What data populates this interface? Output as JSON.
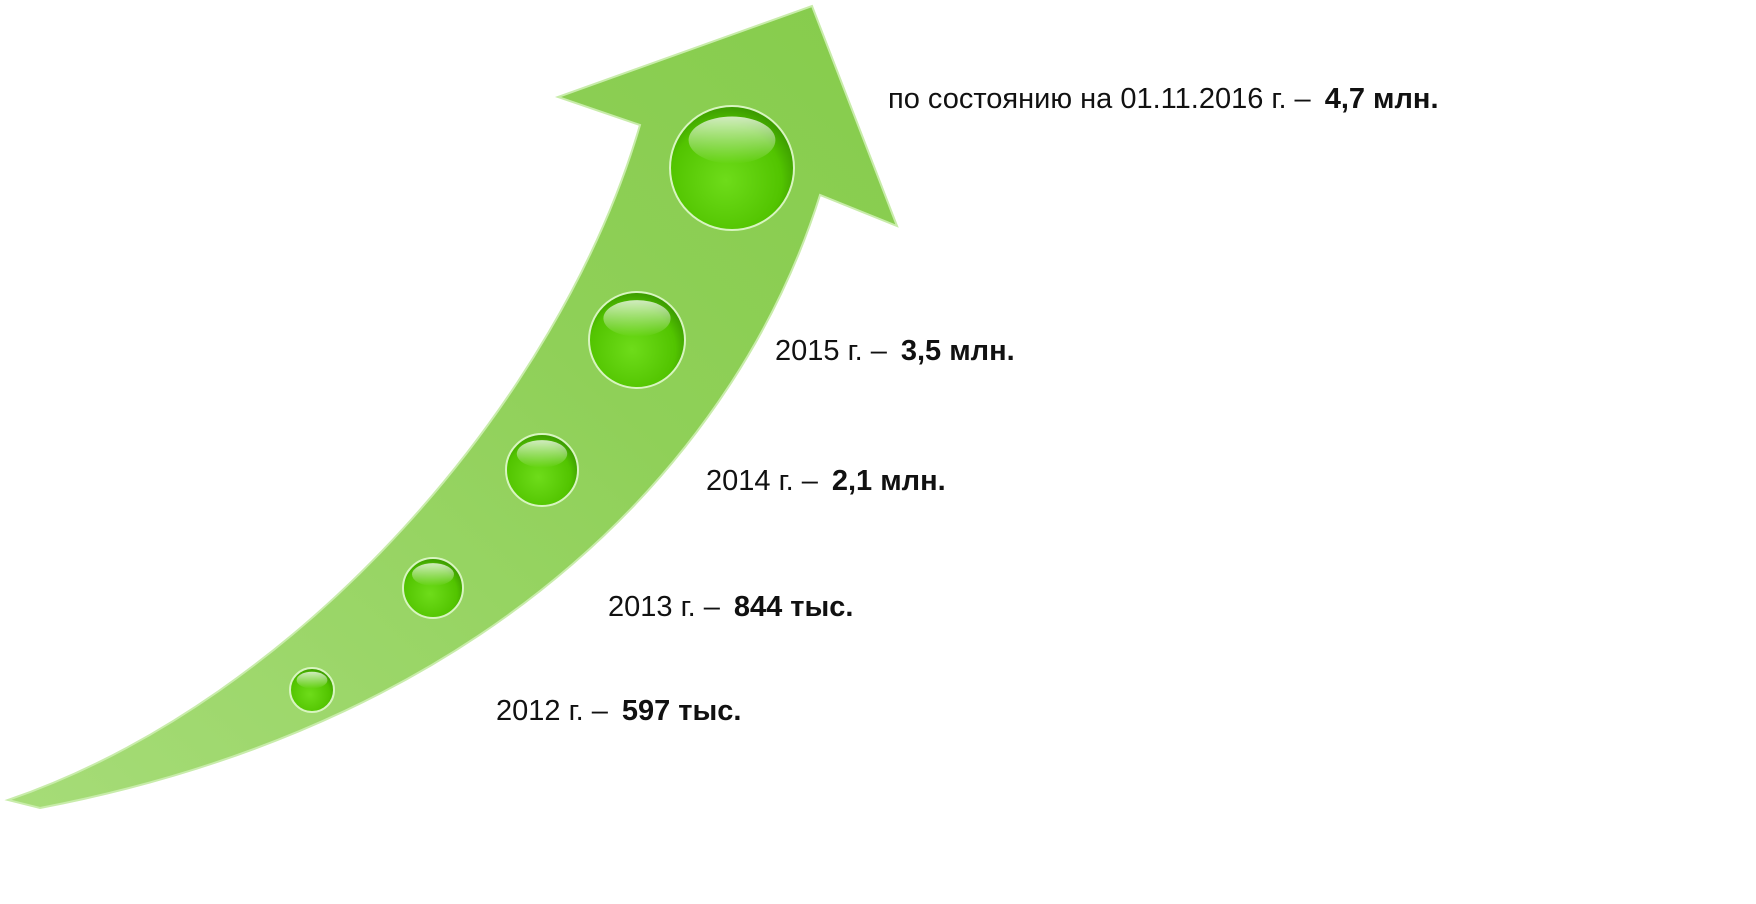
{
  "items": [
    {
      "period": "по состоянию на 01.11.2016 г. –",
      "value": "4,7 млн."
    },
    {
      "period": "2015 г. –",
      "value": "3,5 млн."
    },
    {
      "period": "2014 г. –",
      "value": "2,1 млн."
    },
    {
      "period": "2013 г. –",
      "value": "844 тыс."
    },
    {
      "period": "2012 г. –",
      "value": "597 тыс."
    }
  ]
}
